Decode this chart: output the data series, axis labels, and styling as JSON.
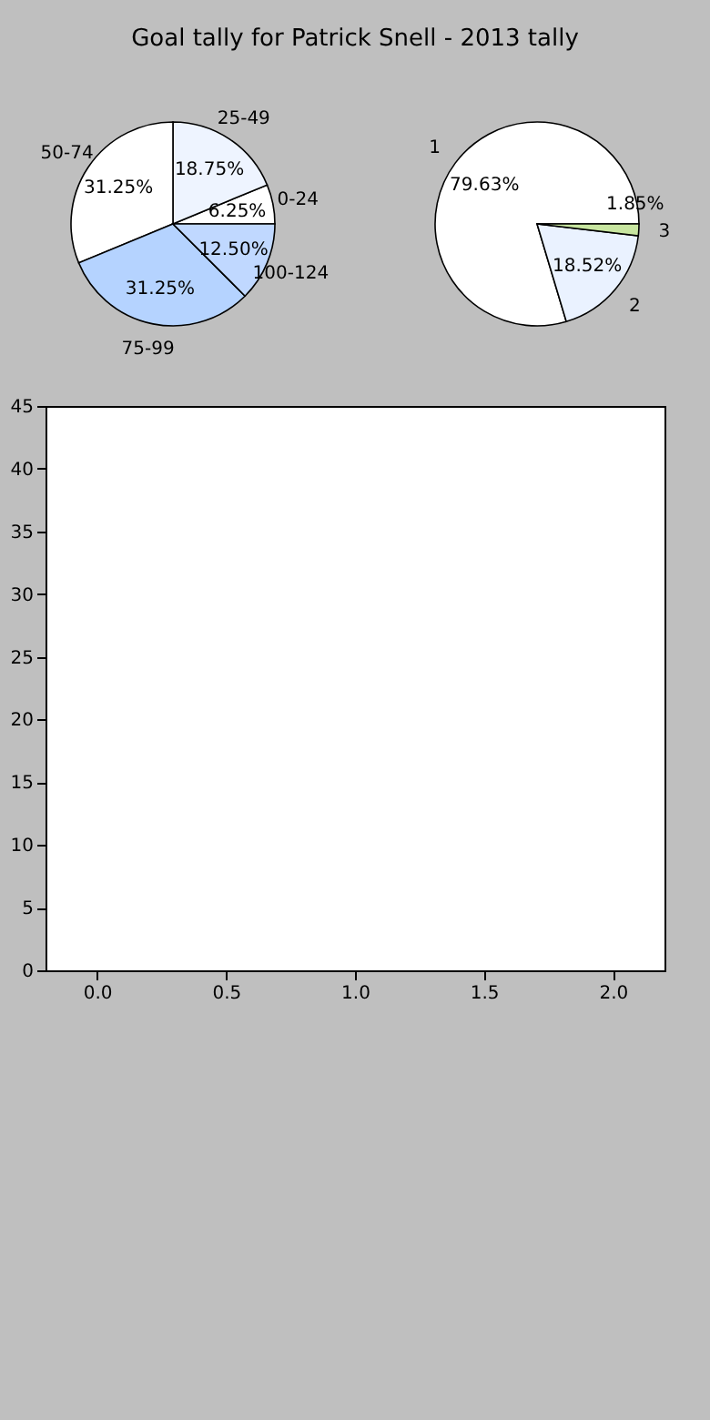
{
  "chart_data": [
    {
      "type": "pie",
      "title": "Goal tally for Patrick Snell - 2013 tally",
      "categories": [
        "0-24",
        "25-49",
        "50-74",
        "75-99",
        "100-124"
      ],
      "values": [
        6.25,
        18.75,
        31.25,
        31.25,
        12.5
      ],
      "value_labels": [
        "6.25%",
        "18.75%",
        "31.25%",
        "31.25%",
        "12.50%"
      ],
      "colors": [
        "#ffffff",
        "#eef4ff",
        "#ffffff",
        "#b5d3ff",
        "#c0d8ff"
      ]
    },
    {
      "type": "pie",
      "categories": [
        "1",
        "2",
        "3"
      ],
      "values": [
        79.63,
        18.52,
        1.85
      ],
      "value_labels": [
        "79.63%",
        "18.52%",
        "1.85%"
      ],
      "colors": [
        "#ffffff",
        "#eaf2ff",
        "#c8e6a0"
      ]
    },
    {
      "type": "scatter",
      "xlim": [
        -0.2,
        2.2
      ],
      "ylim": [
        0,
        45
      ],
      "xticks": [
        {
          "value": 0,
          "label": "0.0"
        },
        0.5,
        {
          "value": 1,
          "label": "1.0"
        },
        1.5,
        {
          "value": 2,
          "label": "2.0"
        }
      ],
      "yticks": [
        0,
        5,
        10,
        15,
        20,
        25,
        30,
        35,
        40,
        45
      ]
    }
  ]
}
